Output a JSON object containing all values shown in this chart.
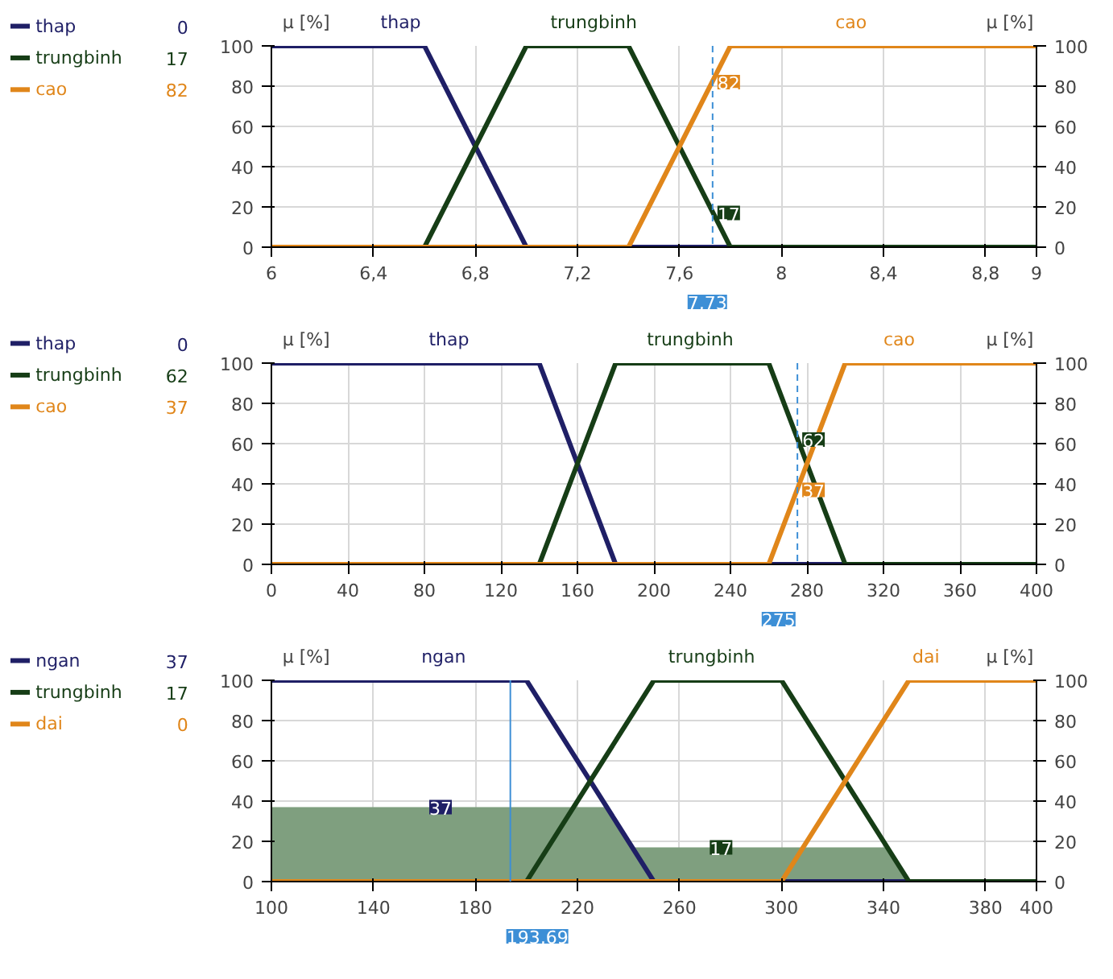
{
  "chart_data": [
    {
      "type": "line",
      "ylabel": "μ [%]",
      "y2label": "μ [%]",
      "xlim": [
        6,
        9
      ],
      "xticks": [
        6,
        {
          "value": 6.4,
          "label": "6,4"
        },
        {
          "value": 6.8,
          "label": "6,8"
        },
        {
          "value": 7.2,
          "label": "7,2"
        },
        {
          "value": 7.6,
          "label": "7,6"
        },
        8,
        {
          "value": 8.4,
          "label": "8,4"
        },
        {
          "value": 8.8,
          "label": "8,8"
        },
        9
      ],
      "ylim": [
        0,
        100
      ],
      "yticks": [
        0,
        20,
        40,
        60,
        80,
        100
      ],
      "y2lim": [
        0,
        100
      ],
      "y2ticks": [
        0,
        20,
        40,
        60,
        80,
        100
      ],
      "grid": true,
      "legend": "left",
      "marker": "none",
      "line_style": "solid",
      "series": [
        {
          "name": "thap",
          "color": "#1f1f66",
          "x": [
            6,
            6.6,
            7,
            9
          ],
          "values": [
            100,
            100,
            0,
            0
          ]
        },
        {
          "name": "trungbinh",
          "color": "#163d16",
          "x": [
            6.6,
            7,
            7.4,
            7.8,
            9
          ],
          "values": [
            0,
            100,
            100,
            0,
            0
          ]
        },
        {
          "name": "cao",
          "color": "#e0861a",
          "x": [
            6,
            7.4,
            7.8,
            9
          ],
          "values": [
            0,
            0,
            100,
            100
          ]
        }
      ],
      "ref_lines": [
        {
          "axis": "x",
          "value": 7.73,
          "label": "7,73",
          "color": "#3d8fd6",
          "line_style": "dashed"
        }
      ],
      "annotations": [
        "0",
        "17",
        "82",
        {
          "text": "82",
          "x": 7.73,
          "y": 82
        },
        {
          "text": "17",
          "x": 7.73,
          "y": 17
        }
      ]
    },
    {
      "type": "line",
      "ylabel": "μ [%]",
      "y2label": "μ [%]",
      "xlim": [
        0,
        400
      ],
      "xticks": [
        0,
        40,
        80,
        120,
        160,
        200,
        240,
        280,
        320,
        360,
        400
      ],
      "ylim": [
        0,
        100
      ],
      "yticks": [
        0,
        20,
        40,
        60,
        80,
        100
      ],
      "y2lim": [
        0,
        100
      ],
      "y2ticks": [
        0,
        20,
        40,
        60,
        80,
        100
      ],
      "grid": true,
      "legend": "left",
      "marker": "none",
      "line_style": "solid",
      "series": [
        {
          "name": "thap",
          "color": "#1f1f66",
          "x": [
            0,
            140,
            180,
            400
          ],
          "values": [
            100,
            100,
            0,
            0
          ]
        },
        {
          "name": "trungbinh",
          "color": "#163d16",
          "x": [
            140,
            180,
            260,
            300,
            400
          ],
          "values": [
            0,
            100,
            100,
            0,
            0
          ]
        },
        {
          "name": "cao",
          "color": "#e0861a",
          "x": [
            0,
            260,
            300,
            400
          ],
          "values": [
            0,
            0,
            100,
            100
          ]
        }
      ],
      "ref_lines": [
        {
          "axis": "x",
          "value": 275,
          "label": "275",
          "color": "#3d8fd6",
          "line_style": "dashed"
        }
      ],
      "annotations": [
        "0",
        "62",
        "37",
        {
          "text": "62",
          "x": 275,
          "y": 62
        },
        {
          "text": "37",
          "x": 275,
          "y": 37
        }
      ]
    },
    {
      "type": "line",
      "ylabel": "μ [%]",
      "y2label": "μ [%]",
      "xlim": [
        100,
        400
      ],
      "xticks": [
        100,
        140,
        180,
        220,
        260,
        300,
        340,
        380,
        400
      ],
      "ylim": [
        0,
        100
      ],
      "yticks": [
        0,
        20,
        40,
        60,
        80,
        100
      ],
      "y2lim": [
        0,
        100
      ],
      "y2ticks": [
        0,
        20,
        40,
        60,
        80,
        100
      ],
      "grid": true,
      "legend": "left",
      "marker": "none",
      "line_style": "solid",
      "series": [
        {
          "type": "area",
          "color": "#7f9f7f",
          "x": [
            100,
            231.5,
            241.5,
            341.5,
            350
          ],
          "values": [
            37,
            37,
            17,
            17,
            0
          ]
        },
        {
          "name": "ngan",
          "color": "#1f1f66",
          "x": [
            100,
            200,
            250,
            400
          ],
          "values": [
            100,
            100,
            0,
            0
          ]
        },
        {
          "name": "trungbinh",
          "color": "#163d16",
          "x": [
            200,
            250,
            300,
            350,
            400
          ],
          "values": [
            0,
            100,
            100,
            0,
            0
          ]
        },
        {
          "name": "dai",
          "color": "#e0861a",
          "x": [
            100,
            300,
            350,
            400
          ],
          "values": [
            0,
            0,
            100,
            100
          ]
        }
      ],
      "ref_lines": [
        {
          "axis": "x",
          "value": 193.69,
          "label": "193,69",
          "color": "#3d8fd6",
          "line_style": "solid"
        }
      ],
      "annotations": [
        "37",
        "17",
        "0",
        {
          "text": "37",
          "x": 160,
          "y": 37
        },
        {
          "text": "17",
          "x": 270,
          "y": 17
        }
      ]
    }
  ]
}
